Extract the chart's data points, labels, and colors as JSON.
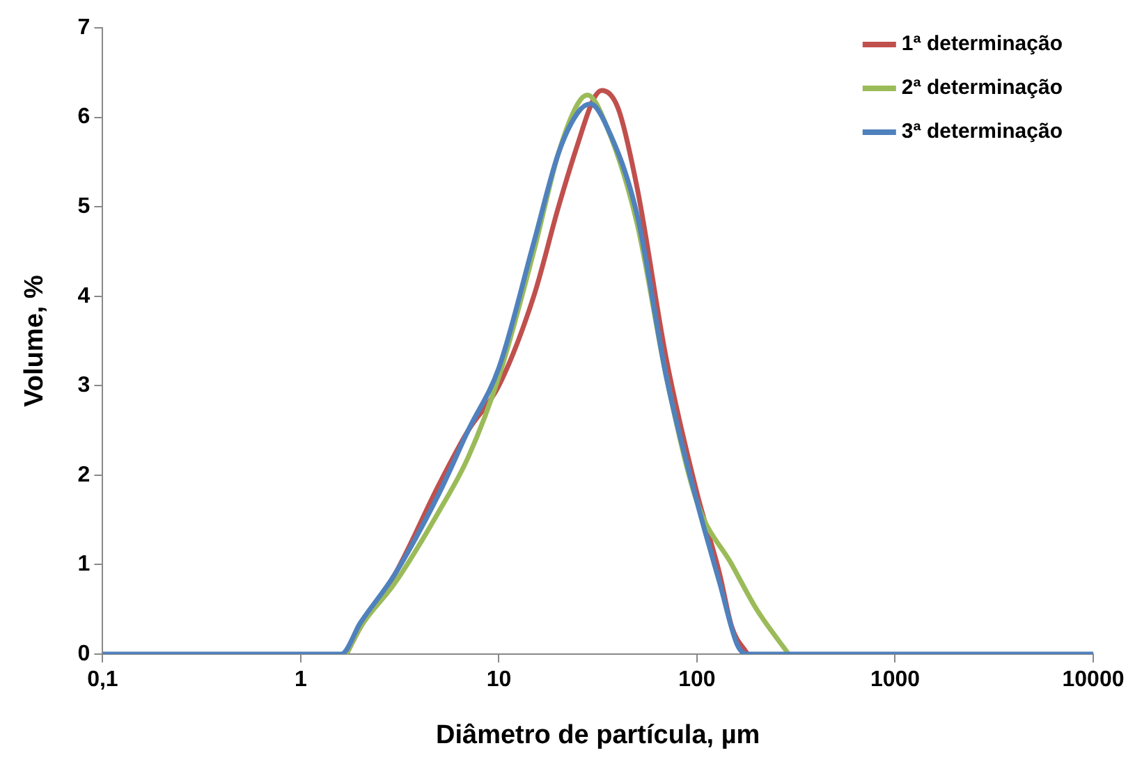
{
  "chart_data": {
    "type": "line",
    "xlabel": "Diâmetro de partícula, µm",
    "ylabel": "Volume, %",
    "log": "x",
    "grid": false,
    "legend": "top right",
    "marker": "none",
    "line_style": "solid",
    "xlim": [
      0.1,
      10000
    ],
    "xticks": [
      {
        "value": 0.1,
        "label": "0,1"
      },
      1,
      10,
      100,
      1000,
      10000
    ],
    "ylim": [
      0,
      7
    ],
    "yticks": [
      0,
      1,
      2,
      3,
      4,
      5,
      6,
      7
    ],
    "series": [
      {
        "name": "1ª determinação",
        "color": "#c0504d",
        "x": [
          1.7,
          2,
          3,
          5,
          7,
          10,
          15,
          20,
          25,
          30,
          33,
          40,
          50,
          70,
          100,
          130,
          150,
          180
        ],
        "values": [
          0,
          0.3,
          0.9,
          1.9,
          2.5,
          3.0,
          4.0,
          5.0,
          5.7,
          6.2,
          6.3,
          6.1,
          5.2,
          3.3,
          1.8,
          0.9,
          0.3,
          0
        ]
      },
      {
        "name": "2ª determinação",
        "color": "#9bbb59",
        "x": [
          1.7,
          2,
          3,
          5,
          7,
          10,
          15,
          20,
          25,
          28,
          35,
          50,
          70,
          100,
          150,
          200,
          290
        ],
        "values": [
          0,
          0.3,
          0.8,
          1.6,
          2.2,
          3.1,
          4.5,
          5.6,
          6.15,
          6.25,
          5.9,
          4.8,
          3.1,
          1.7,
          1.0,
          0.5,
          0
        ]
      },
      {
        "name": "3ª determinação",
        "color": "#4f81bd",
        "x": [
          0.1,
          1,
          1.6,
          2,
          3,
          5,
          7,
          10,
          15,
          20,
          25,
          29,
          35,
          50,
          70,
          100,
          130,
          160,
          180,
          10000
        ],
        "values": [
          0,
          0,
          0,
          0.35,
          0.9,
          1.8,
          2.5,
          3.2,
          4.6,
          5.6,
          6.05,
          6.15,
          5.9,
          4.9,
          3.1,
          1.7,
          0.8,
          0.1,
          0,
          0
        ]
      }
    ]
  }
}
